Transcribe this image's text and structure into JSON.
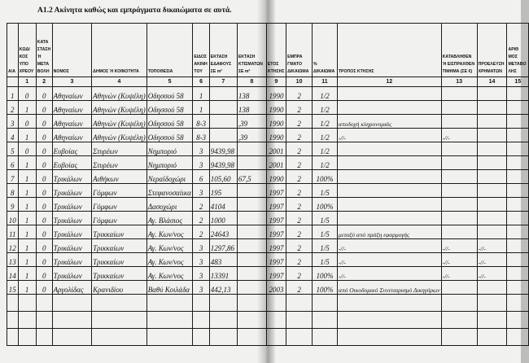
{
  "title": "Α1.2 Ακίνητα καθώς και εμπράγματα δικαιώματα σε αυτά.",
  "headers": [
    "Α/Α",
    "ΚΩΔΙ ΚΟΣ ΥΠΟ ΧΡΕΟΥ",
    "ΚΑΤΑ ΣΤΑΣΗ Ή ΜΕΤΑ ΒΟΛΗ",
    "ΝΟΜΟΣ",
    "ΔΗΜΟΣ Ή ΚΟΙΝΟΤΗΤΑ",
    "ΤΟΠΟΘΕΣΙΑ",
    "ΕΙΔΟΣ ΑΚΙΝΗ ΤΟΥ",
    "ΕΚΤΑΣΗ ΕΔΑΦΟΥΣ ΣΕ m²",
    "ΕΚΤΑΣΗ ΚΤΙΣΜΑΤΩΝ ΣΕ m²",
    "ΕΤΟΣ ΚΤΗΣΗΣ",
    "ΕΜΠΡΑ ΓΜΑΤΟ ΔΙΚΑΙΩΜΑ",
    "% ΔΙΚΑΙΩΜΑ",
    "ΤΡΟΠΟΣ ΚΤΗΣΗΣ",
    "ΚΑΤΑΒΛΗΘΕΝ Ή ΕΙΣΠΡΑΧΘΕΝ ΤΙΜΗΜΑ (ΣΕ €)",
    "ΠΡΟΕΛΕΥΣΗ ΧΡΗΜΑΤΩΝ",
    "ΑΡΙΘ ΜΟΣ ΜΕΤΑΒΟ ΛΗΣ"
  ],
  "column_numbers": [
    "",
    "1",
    "2",
    "3",
    "4",
    "5",
    "6",
    "7",
    "8",
    "9",
    "10",
    "11",
    "12",
    "13",
    "14",
    "15"
  ],
  "rows": [
    [
      "1",
      "0",
      "0",
      "Αθηναίων",
      "Αθηνών (Κυψέλη)",
      "Οδησσού 58",
      "1",
      "",
      "138",
      "1990",
      "2",
      "1/2",
      "",
      "",
      "",
      ""
    ],
    [
      "2",
      "1",
      "0",
      "Αθηναίων",
      "Αθηνών (Κυψέλη)",
      "Οδησσού 58",
      "1",
      "",
      "138",
      "1990",
      "2",
      "1/2",
      "",
      "",
      "",
      ""
    ],
    [
      "3",
      "0",
      "0",
      "Αθηναίων",
      "Αθηνών (Κυψέλη)",
      "Οδησσού 58",
      "8-3",
      "",
      ",39",
      "1990",
      "2",
      "1/2",
      "αποδοχή κληρονομιάς",
      "",
      "",
      ""
    ],
    [
      "4",
      "1",
      "0",
      "Αθηναίων",
      "Αθηνών (Κυψέλη)",
      "Οδησσού 58",
      "8-3",
      "",
      ",39",
      "1990",
      "2",
      "1/2",
      "-//-",
      "-//-",
      "",
      ""
    ],
    [
      "5",
      "0",
      "0",
      "Ευβοίας",
      "Στυρέων",
      "Νημποριό",
      "3",
      "9439,98",
      "",
      "2001",
      "2",
      "1/2",
      "",
      "",
      "",
      ""
    ],
    [
      "6",
      "1",
      "0",
      "Ευβοίας",
      "Στυρέων",
      "Νημποριό",
      "3",
      "9439,98",
      "",
      "2001",
      "2",
      "1/2",
      "",
      "",
      "",
      ""
    ],
    [
      "7",
      "1",
      "0",
      "Τρικάλων",
      "Αιθήκων",
      "Νεραϊδοχώρι",
      "6",
      "105,60",
      "67,5",
      "1990",
      "2",
      "100%",
      "",
      "",
      "",
      ""
    ],
    [
      "8",
      "1",
      "0",
      "Τρικάλων",
      "Γόμφων",
      "Στεφανοσαίικα",
      "3",
      "195",
      "",
      "1997",
      "2",
      "1/5",
      "",
      "",
      "",
      ""
    ],
    [
      "9",
      "1",
      "0",
      "Τρικάλων",
      "Γόμφων",
      "Δασοχώρι",
      "2",
      "4104",
      "",
      "1997",
      "2",
      "100%",
      "",
      "",
      "",
      ""
    ],
    [
      "10",
      "1",
      "0",
      "Τρικάλων",
      "Γόμφων",
      "Αγ. Βλάσιος",
      "2",
      "1000",
      "",
      "1997",
      "2",
      "1/5",
      "",
      "",
      "",
      ""
    ],
    [
      "11",
      "1",
      "0",
      "Τρικάλων",
      "Τρικκαίων",
      "Αγ. Κων/νος",
      "2",
      "24643",
      "",
      "1997",
      "2",
      "1/5",
      "μεταξύ από πράξη εφαρμογής",
      "",
      "",
      ""
    ],
    [
      "12",
      "1",
      "0",
      "Τρικάλων",
      "Τρικκαίων",
      "Αγ. Κων/νος",
      "3",
      "1297,86",
      "",
      "1997",
      "2",
      "1/5",
      "-//-",
      "-//-",
      "-//-",
      ""
    ],
    [
      "13",
      "1",
      "0",
      "Τρικάλων",
      "Τρικκαίων",
      "Αγ. Κων/νος",
      "3",
      "483",
      "",
      "1997",
      "2",
      "1/5",
      "-//-",
      "-//-",
      "-//-",
      ""
    ],
    [
      "14",
      "1",
      "0",
      "Τρικάλων",
      "Τρικκαίων",
      "Αγ. Κων/νος",
      "3",
      "13391",
      "",
      "1997",
      "2",
      "100%",
      "-//-",
      "-//-",
      "-//-",
      ""
    ],
    [
      "15",
      "1",
      "0",
      "Αργολίδας",
      "Κρανιδίου",
      "Βαθύ Κοιλάδα",
      "3",
      "442,13",
      "",
      "2003",
      "2",
      "100%",
      "από Οικοδομικό Συνεταιρισμό Δικηγόρων",
      "",
      "",
      ""
    ]
  ],
  "empty_rows": 3
}
